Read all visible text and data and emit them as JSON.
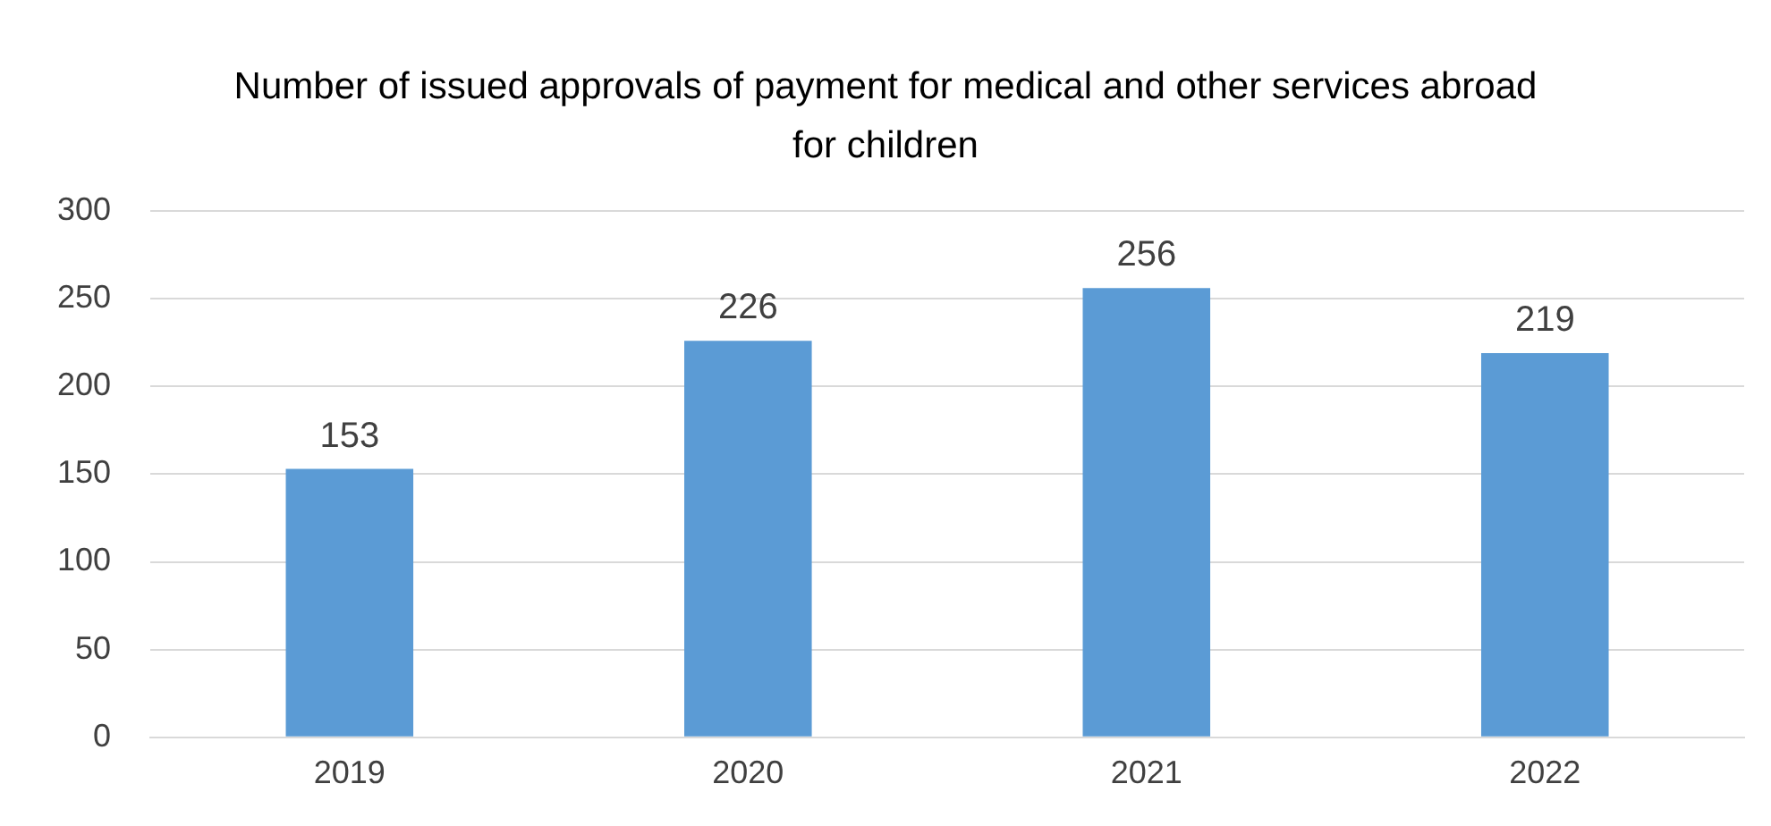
{
  "chart_data": {
    "type": "bar",
    "title": "Number of issued approvals of payment for medical and other services abroad for children",
    "categories": [
      "2019",
      "2020",
      "2021",
      "2022"
    ],
    "values": [
      153,
      226,
      256,
      219
    ],
    "color": "#5b9bd5",
    "ylim": [
      0,
      300
    ],
    "yticks": [
      0,
      50,
      100,
      150,
      200,
      250,
      300
    ],
    "grid": "y",
    "data_labels": true
  }
}
